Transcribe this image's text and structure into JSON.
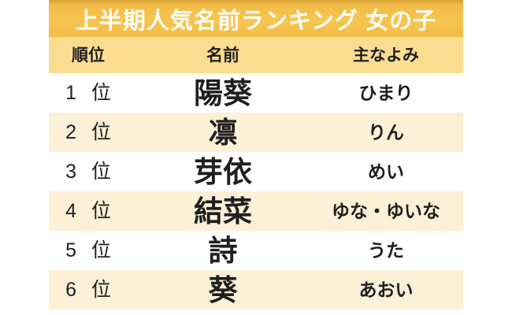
{
  "title": "上半期人気名前ランキング 女の子",
  "table": {
    "headers": [
      "順位",
      "名前",
      "主なよみ"
    ],
    "rows": [
      {
        "rank": "1 位",
        "name": "陽葵",
        "reading": "ひまり"
      },
      {
        "rank": "2 位",
        "name": "凛",
        "reading": "りん"
      },
      {
        "rank": "3 位",
        "name": "芽依",
        "reading": "めい"
      },
      {
        "rank": "4 位",
        "name": "結菜",
        "reading": "ゆな・ゆいな"
      },
      {
        "rank": "5 位",
        "name": "詩",
        "reading": "うた"
      },
      {
        "rank": "6 位",
        "name": "葵",
        "reading": "あおい"
      }
    ]
  },
  "colors": {
    "title_bar_bg": "#F4C14B",
    "title_text": "#FFFDF6",
    "header_bg": "#FBDD92",
    "row_bg": "#FFFFFF",
    "row_alt_bg": "#FCF0D7",
    "text": "#1F1F1F"
  },
  "chart_data": {
    "type": "table",
    "title": "上半期人気名前ランキング 女の子",
    "columns": [
      "順位",
      "名前",
      "主なよみ"
    ],
    "rows": [
      [
        "1位",
        "陽葵",
        "ひまり"
      ],
      [
        "2位",
        "凛",
        "りん"
      ],
      [
        "3位",
        "芽依",
        "めい"
      ],
      [
        "4位",
        "結菜",
        "ゆな・ゆいな"
      ],
      [
        "5位",
        "詩",
        "うた"
      ],
      [
        "6位",
        "葵",
        "あおい"
      ]
    ],
    "layout_hints": {
      "header_band": "amber title bar, white bold text",
      "zebra_rows": "white / cream alternating",
      "bottom_row_cut_off": true
    }
  }
}
